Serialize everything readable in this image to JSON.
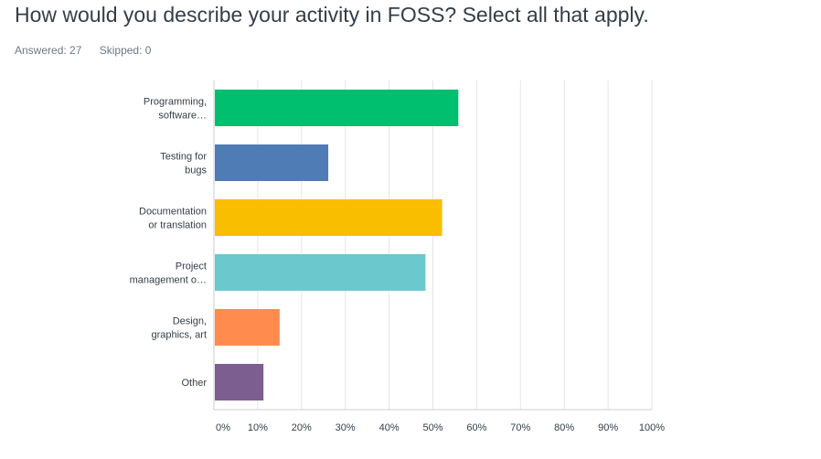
{
  "question": {
    "title": "How would you describe your activity in FOSS? Select all that apply.",
    "answered_label": "Answered: 27",
    "skipped_label": "Skipped: 0"
  },
  "colors": {
    "grid": "#e6e6e6",
    "axis": "#cccccc"
  },
  "chart_data": {
    "type": "bar",
    "orientation": "horizontal",
    "categories": [
      [
        "Programming,",
        "software…"
      ],
      [
        "Testing for",
        "bugs"
      ],
      [
        "Documentation",
        "or translation"
      ],
      [
        "Project",
        "management o…"
      ],
      [
        "Design,",
        "graphics, art"
      ],
      [
        "Other"
      ]
    ],
    "values": [
      55.6,
      25.9,
      51.9,
      48.1,
      14.8,
      11.1
    ],
    "bar_colors": [
      "#00bf6f",
      "#507cb6",
      "#f9be00",
      "#6bc8cd",
      "#ff8b4f",
      "#7d5e90"
    ],
    "xlim": [
      0,
      100
    ],
    "x_ticks": [
      "0%",
      "10%",
      "20%",
      "30%",
      "40%",
      "50%",
      "60%",
      "70%",
      "80%",
      "90%",
      "100%"
    ],
    "grid": true
  }
}
